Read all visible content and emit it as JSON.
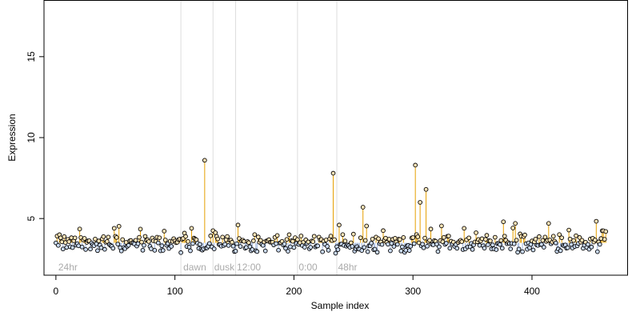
{
  "chart_data": {
    "type": "scatter",
    "xlabel": "Sample index",
    "ylabel": "Expression",
    "xlim": [
      -10,
      480
    ],
    "ylim": [
      1.5,
      18.5
    ],
    "x_ticks": [
      0,
      100,
      200,
      300,
      400
    ],
    "y_ticks": [
      5,
      10,
      15
    ],
    "baseline": 3.5,
    "grid": false,
    "legend": "none",
    "colors": {
      "point_fill_high": "#fde5b8",
      "point_fill_low": "#c9d9f1",
      "point_edge": "#000000",
      "stem_high": "#e69f00",
      "stem_low": "#9bb3de",
      "segment_line": "#dddddd",
      "segment_label": "#aaaaaa"
    },
    "segments": [
      {
        "label": "24hr",
        "x": 2
      },
      {
        "label": "dawn",
        "x": 107
      },
      {
        "label": "dusk",
        "x": 133
      },
      {
        "label": "12:00",
        "x": 152
      },
      {
        "label": "0:00",
        "x": 204
      },
      {
        "label": "48hr",
        "x": 237
      }
    ],
    "segment_boundaries": [
      105,
      132,
      151,
      203,
      236
    ],
    "outliers": [
      {
        "x": 125,
        "y": 8.6
      },
      {
        "x": 233,
        "y": 7.8
      },
      {
        "x": 258,
        "y": 5.7
      },
      {
        "x": 302,
        "y": 8.3
      },
      {
        "x": 306,
        "y": 6.0
      },
      {
        "x": 311,
        "y": 6.8
      },
      {
        "x": 3,
        "y": 4.0
      },
      {
        "x": 49,
        "y": 4.4
      },
      {
        "x": 108,
        "y": 4.1
      },
      {
        "x": 153,
        "y": 4.6
      },
      {
        "x": 238,
        "y": 4.6
      },
      {
        "x": 376,
        "y": 4.8
      },
      {
        "x": 386,
        "y": 4.7
      },
      {
        "x": 414,
        "y": 4.7
      },
      {
        "x": 462,
        "y": 4.2
      }
    ],
    "n_samples": 463
  }
}
